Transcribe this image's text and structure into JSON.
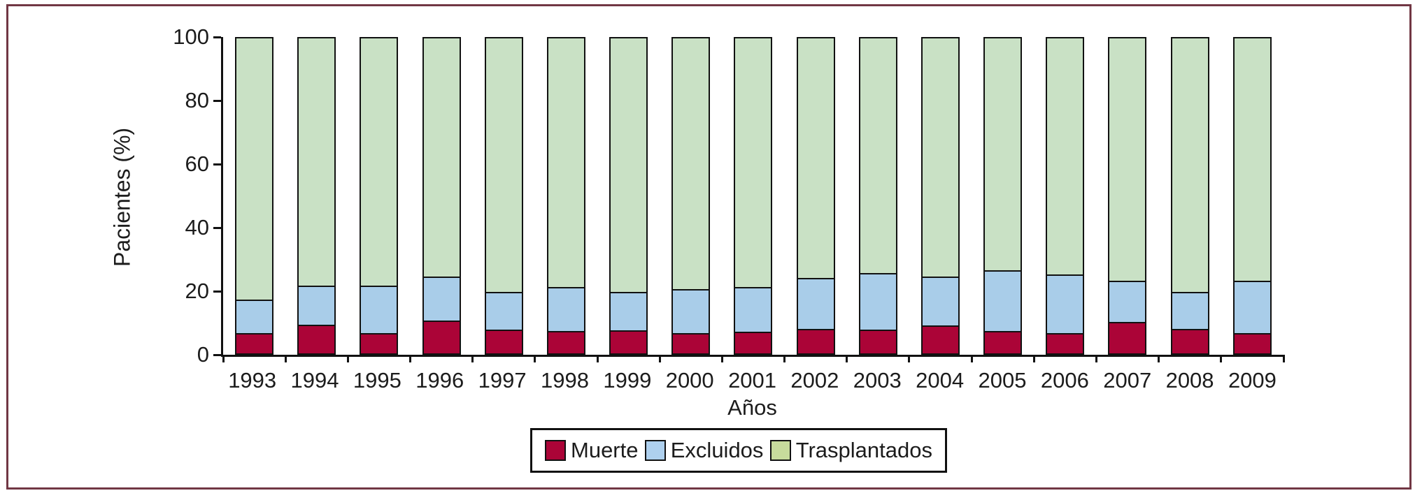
{
  "figure": {
    "frame_color": "#713744",
    "background": "#ffffff",
    "axis_color": "#111111",
    "text_color": "#1c1c1c"
  },
  "chart_data": {
    "type": "bar",
    "stacked": true,
    "title": "",
    "xlabel": "Años",
    "ylabel": "Pacientes (%)",
    "ylim": [
      0,
      100
    ],
    "yticks": [
      0,
      20,
      40,
      60,
      80,
      100
    ],
    "grid": false,
    "legend_position": "bottom",
    "categories": [
      "1993",
      "1994",
      "1995",
      "1996",
      "1997",
      "1998",
      "1999",
      "2000",
      "2001",
      "2002",
      "2003",
      "2004",
      "2005",
      "2006",
      "2007",
      "2008",
      "2009"
    ],
    "series": [
      {
        "name": "Muerte",
        "color": "#ab0437",
        "legend_color": "#ab0437",
        "values": [
          6.5,
          9,
          6.5,
          10.5,
          7.5,
          7.2,
          7.4,
          6.5,
          6.8,
          7.8,
          7.5,
          8.8,
          7,
          6.5,
          10,
          7.8,
          6.5
        ]
      },
      {
        "name": "Excluidos",
        "color": "#a9cde9",
        "legend_color": "#aed0ee",
        "values": [
          10.5,
          12.5,
          15,
          14,
          12,
          13.8,
          12.1,
          14,
          14.2,
          16.2,
          18,
          15.7,
          19.5,
          18.5,
          13,
          11.7,
          16.5
        ]
      },
      {
        "name": "Trasplantados",
        "color": "#c9e1c5",
        "legend_color": "#c7db9c",
        "values": [
          83,
          78.5,
          78.5,
          75.5,
          80.5,
          79,
          80.5,
          79.5,
          79,
          76,
          74.5,
          75.5,
          73.5,
          75,
          77,
          80.5,
          77
        ]
      }
    ]
  }
}
